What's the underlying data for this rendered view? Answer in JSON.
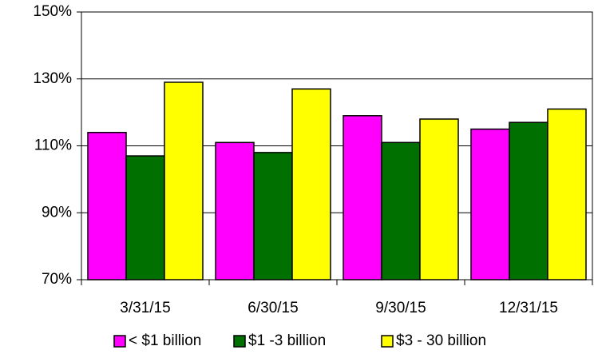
{
  "chart_data": {
    "type": "bar",
    "categories": [
      "3/31/15",
      "6/30/15",
      "9/30/15",
      "12/31/15"
    ],
    "series": [
      {
        "name": "< $1 billion",
        "color": "#ff00ff",
        "values": [
          114,
          111,
          119,
          115
        ]
      },
      {
        "name": "$1 -3 billion",
        "color": "#007000",
        "values": [
          107,
          108,
          111,
          117
        ]
      },
      {
        "name": "$3 - 30 billion",
        "color": "#ffff00",
        "values": [
          129,
          127,
          118,
          121
        ]
      }
    ],
    "ylim": [
      70,
      150
    ],
    "yticks": [
      {
        "value": 70,
        "label": "70%"
      },
      {
        "value": 90,
        "label": "90%"
      },
      {
        "value": 110,
        "label": "110%"
      },
      {
        "value": 130,
        "label": "130%"
      },
      {
        "value": 150,
        "label": "150%"
      }
    ],
    "grid": true,
    "legend": "bottom"
  }
}
